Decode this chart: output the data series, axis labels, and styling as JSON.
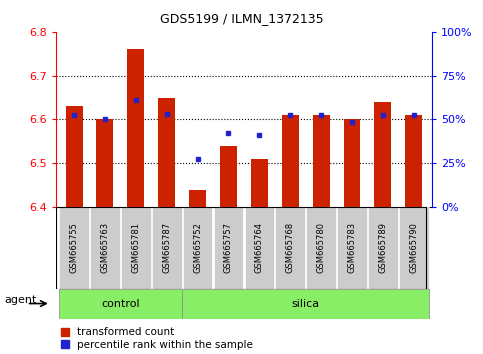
{
  "title": "GDS5199 / ILMN_1372135",
  "samples": [
    "GSM665755",
    "GSM665763",
    "GSM665781",
    "GSM665787",
    "GSM665752",
    "GSM665757",
    "GSM665764",
    "GSM665768",
    "GSM665780",
    "GSM665783",
    "GSM665789",
    "GSM665790"
  ],
  "red_values": [
    6.63,
    6.6,
    6.76,
    6.65,
    6.44,
    6.54,
    6.51,
    6.61,
    6.61,
    6.6,
    6.64,
    6.61
  ],
  "blue_values": [
    6.61,
    6.6,
    6.645,
    6.612,
    6.51,
    6.57,
    6.565,
    6.61,
    6.61,
    6.594,
    6.61,
    6.61
  ],
  "ylim_left": [
    6.4,
    6.8
  ],
  "ylim_right": [
    0,
    100
  ],
  "yticks_left": [
    6.4,
    6.5,
    6.6,
    6.7,
    6.8
  ],
  "yticks_right": [
    0,
    25,
    50,
    75,
    100
  ],
  "grid_lines": [
    6.5,
    6.6,
    6.7
  ],
  "control_samples": 4,
  "bar_bottom": 6.4,
  "bar_color": "#cc2200",
  "blue_color": "#2222cc",
  "gray_box_color": "#cccccc",
  "green_color": "#88ee66",
  "legend_red_label": "transformed count",
  "legend_blue_label": "percentile rank within the sample",
  "agent_label": "agent",
  "control_label": "control",
  "silica_label": "silica",
  "bar_width": 0.55
}
